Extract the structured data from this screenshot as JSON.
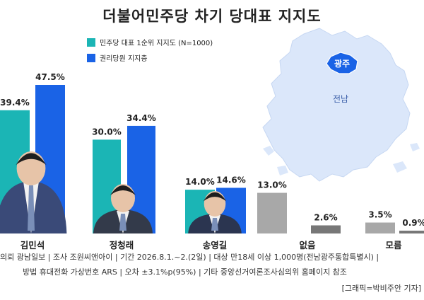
{
  "chart_data": {
    "type": "bar",
    "title": "더불어민주당 차기 당대표 지지도",
    "categories": [
      "김민석",
      "정청래",
      "송영길",
      "없음",
      "모름"
    ],
    "series": [
      {
        "name": "민주당 대표 1순위 지지도 (N=1000)",
        "values": [
          39.4,
          30.0,
          14.0,
          13.0,
          3.5
        ],
        "labels": [
          "39.4%",
          "30.0%",
          "14.0%",
          "13.0%",
          "3.5%"
        ]
      },
      {
        "name": "권리당원 지지층",
        "values": [
          47.5,
          34.4,
          14.6,
          2.6,
          0.9
        ],
        "labels": [
          "47.5%",
          "34.4%",
          "14.6%",
          "2.6%",
          "0.9%"
        ]
      }
    ],
    "ylim": [
      0,
      50
    ],
    "grid": false,
    "legend": "top-left",
    "colors": {
      "teal": "#1bb5b5",
      "blue": "#1a63e6",
      "gray_dark": "#a8a8a8",
      "gray_light": "#777777"
    }
  },
  "map": {
    "city_label": "광주",
    "region_label": "전남"
  },
  "notes": [
    "의뢰 광남일보 | 조사 조원씨앤아이 | 기간 2026.8.1.~2.(2일) | 대상 만18세 이상 1,000명(전남광주통합특별시) |",
    "방법 휴대전화 가상번호 ARS | 오차 ±3.1%p(95%) | 기타 중앙선거여론조사심의위 홈페이지 참조",
    "[그래픽=박비주안 기자]"
  ]
}
